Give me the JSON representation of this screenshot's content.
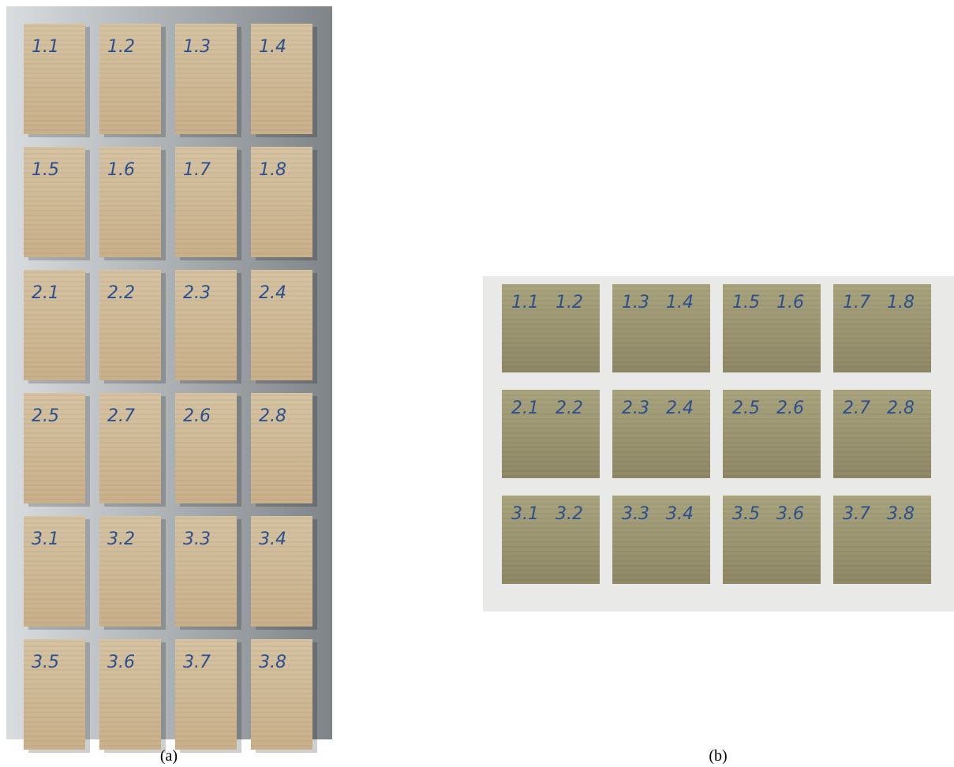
{
  "panels": [
    {
      "caption": "(a)",
      "blocks": [
        "1.1",
        "1.2",
        "1.3",
        "1.4",
        "1.5",
        "1.6",
        "1.7",
        "1.8",
        "2.1",
        "2.2",
        "2.3",
        "2.4",
        "2.5",
        "2.7",
        "2.6",
        "2.8",
        "3.1",
        "3.2",
        "3.3",
        "3.4",
        "3.5",
        "3.6",
        "3.7",
        "3.8"
      ]
    },
    {
      "caption": "(b)",
      "blocks": [
        [
          "1.1",
          "1.2"
        ],
        [
          "1.3",
          "1.4"
        ],
        [
          "1.5",
          "1.6"
        ],
        [
          "1.7",
          "1.8"
        ],
        [
          "2.1",
          "2.2"
        ],
        [
          "2.3",
          "2.4"
        ],
        [
          "2.5",
          "2.6"
        ],
        [
          "2.7",
          "2.8"
        ],
        [
          "3.1",
          "3.2"
        ],
        [
          "3.3",
          "3.4"
        ],
        [
          "3.5",
          "3.6"
        ],
        [
          "3.7",
          "3.8"
        ]
      ]
    }
  ]
}
